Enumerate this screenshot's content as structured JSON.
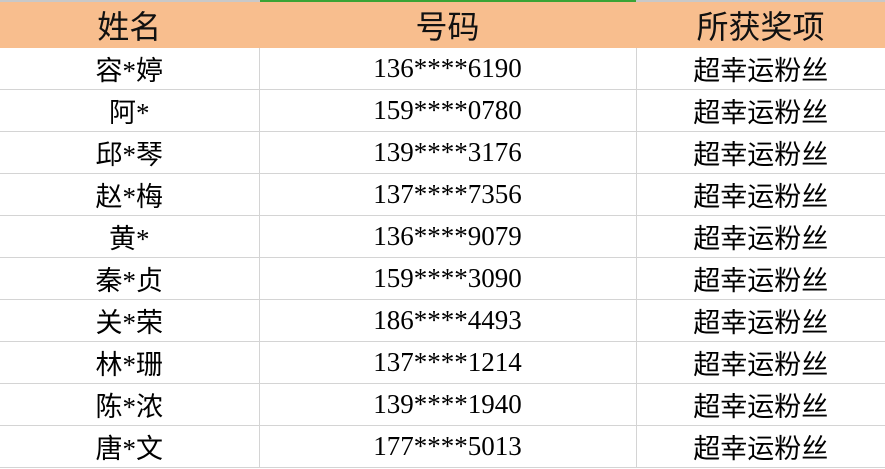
{
  "headers": [
    "姓名",
    "号码",
    "所获奖项"
  ],
  "rows": [
    [
      "容*婷",
      "136****6190",
      "超幸运粉丝"
    ],
    [
      "阿*",
      "159****0780",
      "超幸运粉丝"
    ],
    [
      "邱*琴",
      "139****3176",
      "超幸运粉丝"
    ],
    [
      "赵*梅",
      "137****7356",
      "超幸运粉丝"
    ],
    [
      "黄*",
      "136****9079",
      "超幸运粉丝"
    ],
    [
      "秦*贞",
      "159****3090",
      "超幸运粉丝"
    ],
    [
      "关*荣",
      "186****4493",
      "超幸运粉丝"
    ],
    [
      "林*珊",
      "137****1214",
      "超幸运粉丝"
    ],
    [
      "陈*浓",
      "139****1940",
      "超幸运粉丝"
    ],
    [
      "唐*文",
      "177****5013",
      "超幸运粉丝"
    ]
  ],
  "colors": {
    "header_bg": "#F8BE8E",
    "selected_column_marker": "#3AA435"
  }
}
